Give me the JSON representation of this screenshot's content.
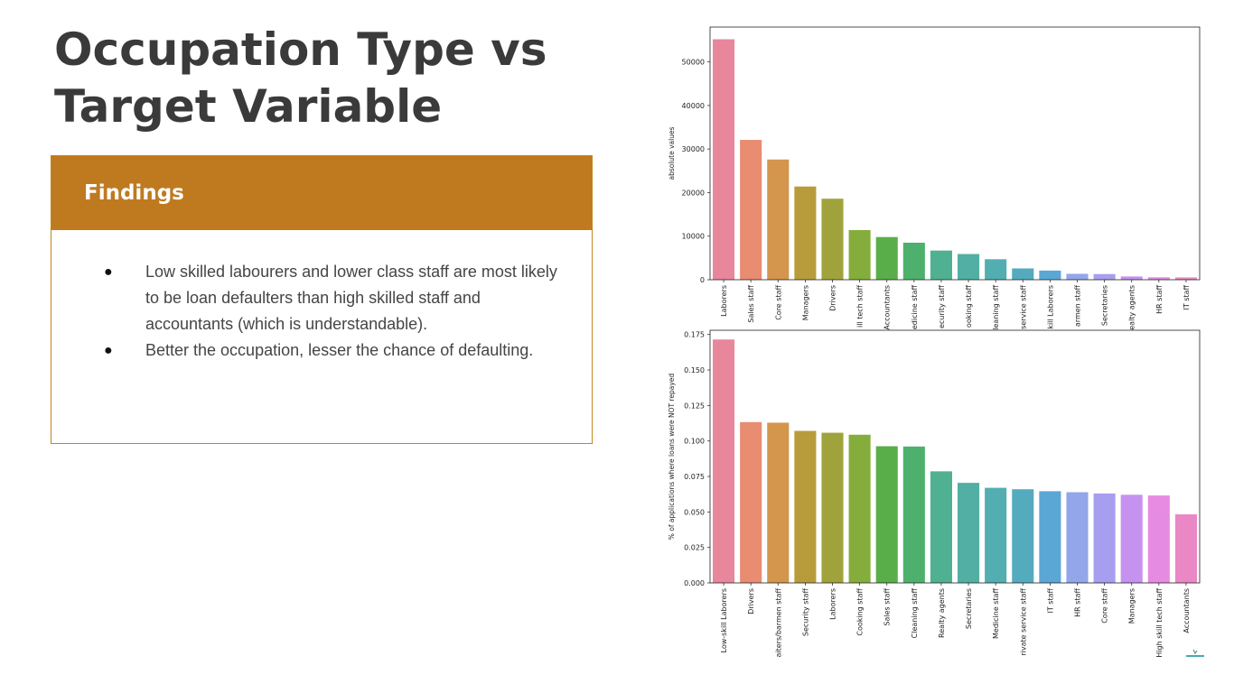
{
  "slide": {
    "title_line1": "Occupation Type vs",
    "title_line2": "Target Variable"
  },
  "findings": {
    "heading": "Findings",
    "items": [
      "Low skilled labourers and lower class staff are most likely to be loan defaulters than high skilled staff and accountants (which is understandable).",
      "Better the occupation, lesser the chance of defaulting."
    ]
  },
  "chart_data": [
    {
      "type": "bar",
      "ylabel": "absolute values",
      "xlabel": "",
      "categories": [
        "Laborers",
        "Sales staff",
        "Core staff",
        "Managers",
        "Drivers",
        "High skill tech staff",
        "Accountants",
        "Medicine staff",
        "Security staff",
        "Cooking staff",
        "Cleaning staff",
        "Private service staff",
        "Low-skill Laborers",
        "Waiters/barmen staff",
        "Secretaries",
        "Realty agents",
        "HR staff",
        "IT staff"
      ],
      "tick_labels": [
        "Laborers",
        "Sales staff",
        "Core staff",
        "Managers",
        "Drivers",
        "ill tech staff",
        "Accountants",
        "edicine staff",
        "ecurity staff",
        "ooking staff",
        "leaning staff",
        "service staff",
        "kill Laborers",
        "armen staff",
        "Secretaries",
        "ealty agents",
        "HR staff",
        "IT staff"
      ],
      "values": [
        55200,
        32100,
        27600,
        21400,
        18600,
        11400,
        9800,
        8500,
        6700,
        5900,
        4700,
        2600,
        2100,
        1350,
        1300,
        750,
        570,
        530
      ],
      "ylim": [
        0,
        58000
      ],
      "yticks": [
        0,
        10000,
        20000,
        30000,
        40000,
        50000
      ],
      "colors": [
        "#e8879b",
        "#e88c72",
        "#d4954d",
        "#b89c3c",
        "#a0a33b",
        "#85ad3c",
        "#5aae49",
        "#4db16d",
        "#4fb191",
        "#51b0a3",
        "#52aeb1",
        "#55abbe",
        "#5aa7d6",
        "#92a6e9",
        "#a79ef0",
        "#c692ef",
        "#e68be2",
        "#ea87c5"
      ],
      "grid": false
    },
    {
      "type": "bar",
      "ylabel": "% of applications where loans were NOT repayed",
      "xlabel": "",
      "categories": [
        "Low-skill Laborers",
        "Drivers",
        "Waiters/barmen staff",
        "Security staff",
        "Laborers",
        "Cooking staff",
        "Sales staff",
        "Cleaning staff",
        "Realty agents",
        "Secretaries",
        "Medicine staff",
        "Private service staff",
        "IT staff",
        "HR staff",
        "Core staff",
        "Managers",
        "High skill tech staff",
        "Accountants"
      ],
      "tick_labels": [
        "Low-skill Laborers",
        "Drivers",
        "aiters/barmen staff",
        "Security staff",
        "Laborers",
        "Cooking staff",
        "Sales staff",
        "Cleaning staff",
        "Realty agents",
        "Secretaries",
        "Medicine staff",
        "rivate service staff",
        "IT staff",
        "HR staff",
        "Core staff",
        "Managers",
        "High skill tech staff",
        "Accountants"
      ],
      "values": [
        0.1715,
        0.1133,
        0.1129,
        0.1071,
        0.1058,
        0.1044,
        0.0963,
        0.0961,
        0.0786,
        0.0705,
        0.067,
        0.066,
        0.0646,
        0.0639,
        0.063,
        0.0621,
        0.0616,
        0.0483
      ],
      "ylim": [
        0,
        0.178
      ],
      "yticks": [
        "0.000",
        "0.025",
        "0.050",
        "0.075",
        "0.100",
        "0.125",
        "0.150",
        "0.175"
      ],
      "colors": [
        "#e8879b",
        "#e88c72",
        "#d4954d",
        "#b89c3c",
        "#a0a33b",
        "#85ad3c",
        "#5aae49",
        "#4db16d",
        "#4fb191",
        "#51b0a3",
        "#52aeb1",
        "#55abbe",
        "#5aa7d6",
        "#92a6e9",
        "#a79ef0",
        "#c692ef",
        "#e68be2",
        "#ea87c5"
      ],
      "grid": false
    }
  ]
}
